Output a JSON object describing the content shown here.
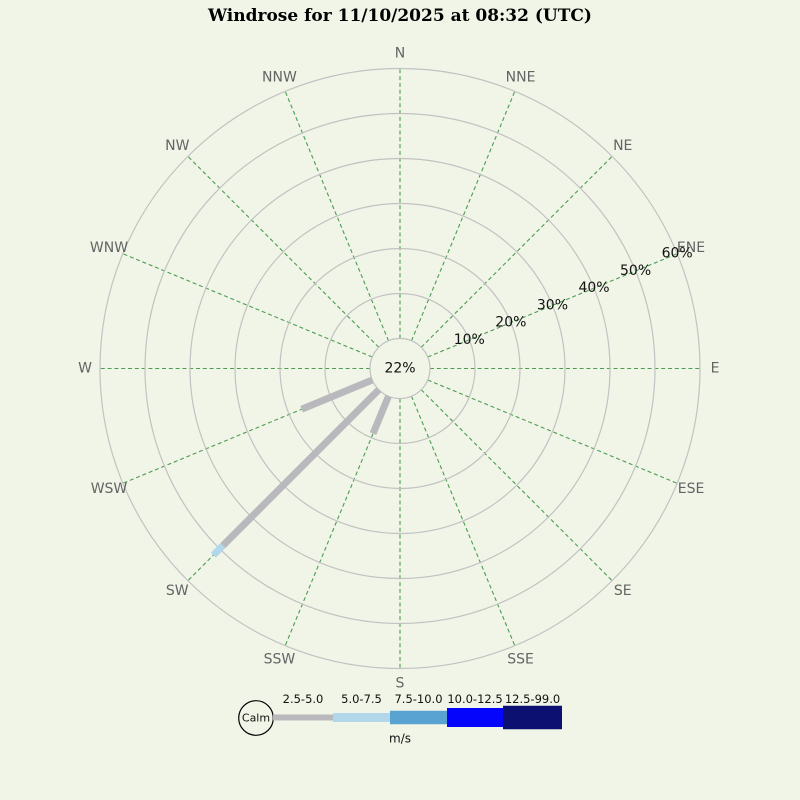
{
  "page": {
    "background_color": "#f0f5e7"
  },
  "title": "Windrose for 11/10/2025 at 08:32 (UTC)",
  "chart_data": {
    "type": "windrose",
    "title": "Windrose for 11/10/2025 at 08:32 (UTC)",
    "calm_percent": 22,
    "calm_center_label": "22%",
    "compass_labels": [
      "N",
      "NNE",
      "NE",
      "ENE",
      "E",
      "ESE",
      "SE",
      "SSE",
      "S",
      "SSW",
      "SW",
      "WSW",
      "W",
      "WNW",
      "NW",
      "NNW"
    ],
    "axis_rings_percent": [
      10,
      20,
      30,
      40,
      50,
      60
    ],
    "axis_ring_labels": [
      "10%",
      "20%",
      "30%",
      "40%",
      "50%",
      "60%"
    ],
    "axis_label_direction": "ENE",
    "axis_label_direction_deg": 67.5,
    "axis_max_percent": 60,
    "speed_bins_mps": [
      {
        "label": "2.5-5.0",
        "color": "#b9b9bd"
      },
      {
        "label": "5.0-7.5",
        "color": "#b2d7ea"
      },
      {
        "label": "7.5-10.0",
        "color": "#58a3d1"
      },
      {
        "label": "10.0-12.5",
        "color": "#0505fb"
      },
      {
        "label": "12.5-99.0",
        "color": "#0c1070"
      }
    ],
    "bars": [
      {
        "direction": "WSW",
        "compass_deg": 247.5,
        "segments": [
          {
            "speed_bin": "2.5-5.0",
            "percent": 17
          }
        ]
      },
      {
        "direction": "SW",
        "compass_deg": 225,
        "segments": [
          {
            "speed_bin": "2.5-5.0",
            "percent": 49
          },
          {
            "speed_bin": "5.0-7.5",
            "percent": 3
          }
        ]
      },
      {
        "direction": "SSW",
        "compass_deg": 202.5,
        "segments": [
          {
            "speed_bin": "2.5-5.0",
            "percent": 9
          }
        ]
      }
    ],
    "legend": {
      "calm_label": "Calm",
      "units_label": "m/s"
    },
    "grid": {
      "ring_color": "#c2c2c2",
      "spoke_color": "#4c9c52",
      "spoke_style": "dashed",
      "compass_text_color": "#646464",
      "ring_label_color": "#111111",
      "legend_text_color": "#111111"
    },
    "legend_position": "bottom"
  }
}
